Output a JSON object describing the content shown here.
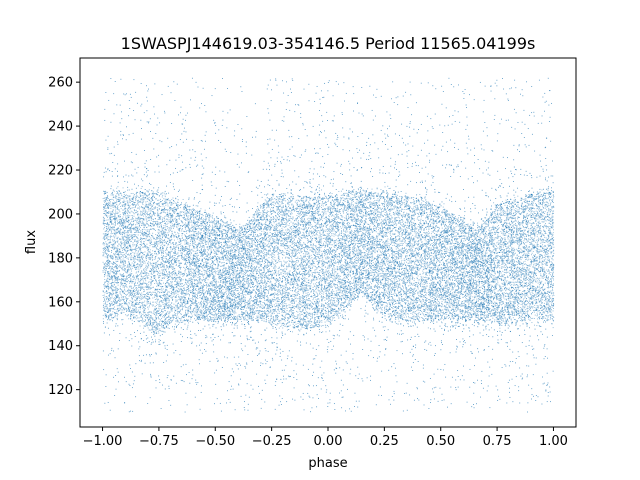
{
  "chart_data": {
    "type": "scatter",
    "title": "1SWASPJ144619.03-354146.5 Period 11565.04199s",
    "xlabel": "phase",
    "ylabel": "flux",
    "xlim": [
      -1.1,
      1.1
    ],
    "ylim": [
      103,
      271
    ],
    "xticks": [
      -1.0,
      -0.75,
      -0.5,
      -0.25,
      0.0,
      0.25,
      0.5,
      0.75,
      1.0
    ],
    "xtick_labels": [
      "−1.00",
      "−0.75",
      "−0.50",
      "−0.25",
      "0.00",
      "0.25",
      "0.50",
      "0.75",
      "1.00"
    ],
    "yticks": [
      120,
      140,
      160,
      180,
      200,
      220,
      240,
      260
    ],
    "ytick_labels": [
      "120",
      "140",
      "160",
      "180",
      "200",
      "220",
      "240",
      "260"
    ],
    "grid": false,
    "marker_color": "#1f77b4",
    "series": [
      {
        "description": "phase-folded light curve, dense band",
        "band_profile": {
          "phase": [
            -1.0,
            -0.9,
            -0.8,
            -0.75,
            -0.7,
            -0.6,
            -0.5,
            -0.4,
            -0.35,
            -0.3,
            -0.25,
            -0.1,
            0.0,
            0.1,
            0.15,
            0.2,
            0.3,
            0.4,
            0.5,
            0.6,
            0.65,
            0.7,
            0.75,
            0.9,
            1.0
          ],
          "upper": [
            210,
            210,
            210,
            209,
            207,
            203,
            199,
            193,
            197,
            204,
            208,
            208,
            208,
            210,
            210,
            210,
            209,
            207,
            203,
            197,
            193,
            197,
            204,
            209,
            210
          ],
          "lower": [
            152,
            156,
            148,
            145,
            151,
            152,
            152,
            152,
            152,
            152,
            150,
            148,
            150,
            160,
            165,
            158,
            152,
            152,
            152,
            152,
            152,
            152,
            150,
            152,
            152
          ]
        },
        "outlier_range": [
          110,
          262
        ]
      }
    ]
  }
}
